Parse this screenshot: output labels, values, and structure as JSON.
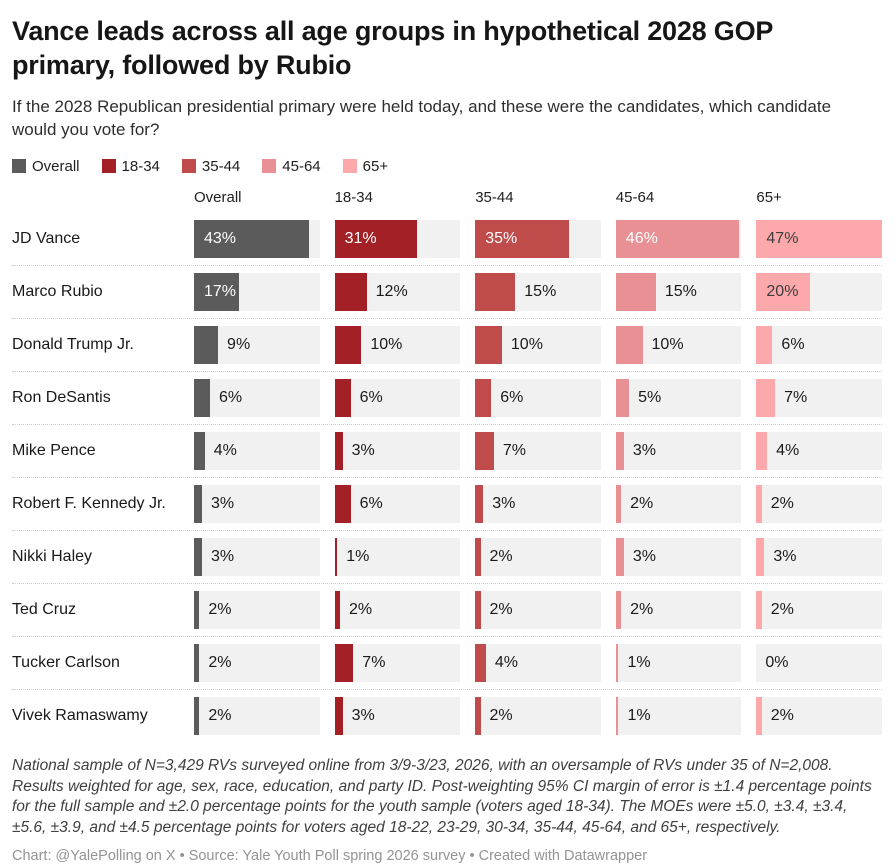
{
  "header": {
    "title": "Vance leads across all age groups in hypothetical 2028 GOP primary, followed by Rubio",
    "subtitle": "If the 2028 Republican presidential primary were held today, and these were the candidates, which candidate would you vote for?"
  },
  "legend": {
    "items": [
      {
        "label": "Overall",
        "color": "#5b5b5b"
      },
      {
        "label": "18-34",
        "color": "#a32026"
      },
      {
        "label": "35-44",
        "color": "#bf4b4a"
      },
      {
        "label": "45-64",
        "color": "#e89093"
      },
      {
        "label": "65+",
        "color": "#fda8ab"
      }
    ]
  },
  "chart_data": {
    "type": "bar",
    "orientation": "horizontal",
    "title": "Vance leads across all age groups in hypothetical 2028 GOP primary, followed by Rubio",
    "unit": "%",
    "xlim": [
      0,
      47
    ],
    "track_color": "#f1f1f1",
    "outside_label_color": "#1a1a1a",
    "columns": [
      {
        "label": "Overall",
        "color": "#5b5b5b",
        "text_on_bar": "#ffffff"
      },
      {
        "label": "18-34",
        "color": "#a32026",
        "text_on_bar": "#ffffff"
      },
      {
        "label": "35-44",
        "color": "#bf4b4a",
        "text_on_bar": "#ffffff"
      },
      {
        "label": "45-64",
        "color": "#e89093",
        "text_on_bar": "#ffffff"
      },
      {
        "label": "65+",
        "color": "#fda8ab",
        "text_on_bar": "#3d3d3d"
      }
    ],
    "rows": [
      {
        "candidate": "JD Vance",
        "values": [
          43,
          31,
          35,
          46,
          47
        ]
      },
      {
        "candidate": "Marco Rubio",
        "values": [
          17,
          12,
          15,
          15,
          20
        ]
      },
      {
        "candidate": "Donald Trump Jr.",
        "values": [
          9,
          10,
          10,
          10,
          6
        ]
      },
      {
        "candidate": "Ron DeSantis",
        "values": [
          6,
          6,
          6,
          5,
          7
        ]
      },
      {
        "candidate": "Mike Pence",
        "values": [
          4,
          3,
          7,
          3,
          4
        ]
      },
      {
        "candidate": "Robert F. Kennedy Jr.",
        "values": [
          3,
          6,
          3,
          2,
          2
        ]
      },
      {
        "candidate": "Nikki Haley",
        "values": [
          3,
          1,
          2,
          3,
          3
        ]
      },
      {
        "candidate": "Ted Cruz",
        "values": [
          2,
          2,
          2,
          2,
          2
        ]
      },
      {
        "candidate": "Tucker Carlson",
        "values": [
          2,
          7,
          4,
          1,
          0
        ]
      },
      {
        "candidate": "Vivek Ramaswamy",
        "values": [
          2,
          3,
          2,
          1,
          2
        ]
      }
    ]
  },
  "notes": "National sample of N=3,429 RVs surveyed online from 3/9-3/23, 2026, with an oversample of RVs under 35 of N=2,008. Results weighted for age, sex, race, education, and party ID. Post-weighting 95% CI margin of error is ±1.4 percentage points for the full sample and ±2.0 percentage points for the youth sample (voters aged 18-34). The MOEs were ±5.0, ±3.4, ±3.4, ±5.6, ±3.9, and ±4.5 percentage points for voters aged 18-22, 23-29, 30-34, 35-44, 45-64, and 65+, respectively.",
  "credit": "Chart: @YalePolling on X • Source: Yale Youth Poll spring 2026 survey • Created with Datawrapper"
}
